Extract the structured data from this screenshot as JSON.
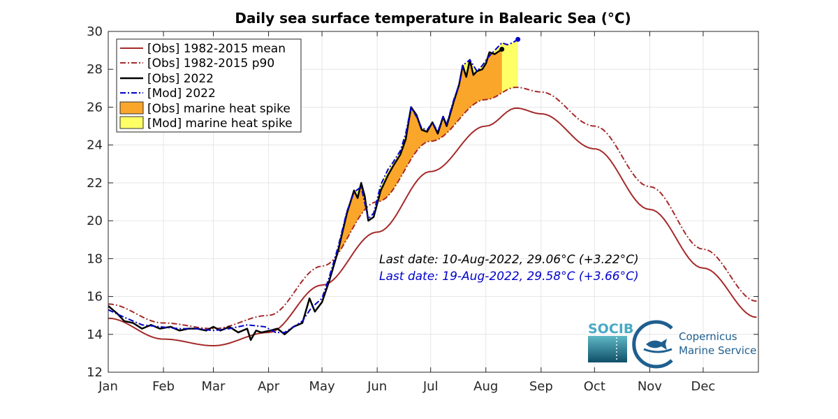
{
  "chart_data": {
    "type": "line",
    "title": "Daily sea surface temperature in Balearic Sea (°C)",
    "xlabel": "",
    "ylabel": "",
    "xlim": [
      "2022-01-01",
      "2022-12-31"
    ],
    "ylim": [
      12,
      30
    ],
    "grid": true,
    "legend_position": "top-left",
    "x_tick_labels": [
      "Jan",
      "Feb",
      "Mar",
      "Apr",
      "May",
      "Jun",
      "Jul",
      "Aug",
      "Sep",
      "Oct",
      "Nov",
      "Dec"
    ],
    "y_ticks": [
      12,
      14,
      16,
      18,
      20,
      22,
      24,
      26,
      28,
      30
    ],
    "series": [
      {
        "name": "[Obs] 1982-2015 mean",
        "color": "#a52a2a",
        "style": "solid",
        "x": [
          "2022-01-01",
          "2022-02-01",
          "2022-03-01",
          "2022-04-01",
          "2022-05-01",
          "2022-06-01",
          "2022-07-01",
          "2022-08-01",
          "2022-08-18",
          "2022-09-01",
          "2022-10-01",
          "2022-11-01",
          "2022-12-01",
          "2022-12-31"
        ],
        "y": [
          14.85,
          13.75,
          13.4,
          14.1,
          16.6,
          19.4,
          22.6,
          25.0,
          25.95,
          25.65,
          23.8,
          20.6,
          17.5,
          14.9
        ]
      },
      {
        "name": "[Obs] 1982-2015 p90",
        "color": "#a52a2a",
        "style": "dashdot",
        "x": [
          "2022-01-01",
          "2022-02-01",
          "2022-03-01",
          "2022-04-01",
          "2022-05-01",
          "2022-06-01",
          "2022-07-01",
          "2022-08-01",
          "2022-08-18",
          "2022-09-01",
          "2022-10-01",
          "2022-11-01",
          "2022-12-01",
          "2022-12-31"
        ],
        "y": [
          15.6,
          14.6,
          14.3,
          15.0,
          17.6,
          21.0,
          24.2,
          26.4,
          27.05,
          26.8,
          25.0,
          21.8,
          18.5,
          15.75
        ]
      },
      {
        "name": "[Obs] 2022",
        "color": "#000000",
        "style": "solid",
        "x": [
          "2022-01-01",
          "2022-01-06",
          "2022-01-10",
          "2022-01-15",
          "2022-01-20",
          "2022-01-25",
          "2022-01-30",
          "2022-02-05",
          "2022-02-10",
          "2022-02-15",
          "2022-02-20",
          "2022-02-25",
          "2022-03-01",
          "2022-03-05",
          "2022-03-10",
          "2022-03-15",
          "2022-03-20",
          "2022-03-22",
          "2022-03-25",
          "2022-03-28",
          "2022-04-02",
          "2022-04-06",
          "2022-04-10",
          "2022-04-15",
          "2022-04-20",
          "2022-04-24",
          "2022-04-27",
          "2022-05-01",
          "2022-05-05",
          "2022-05-10",
          "2022-05-15",
          "2022-05-19",
          "2022-05-21",
          "2022-05-23",
          "2022-05-25",
          "2022-05-27",
          "2022-05-30",
          "2022-06-03",
          "2022-06-07",
          "2022-06-10",
          "2022-06-14",
          "2022-06-17",
          "2022-06-20",
          "2022-06-23",
          "2022-06-26",
          "2022-06-29",
          "2022-07-02",
          "2022-07-05",
          "2022-07-08",
          "2022-07-10",
          "2022-07-14",
          "2022-07-17",
          "2022-07-19",
          "2022-07-21",
          "2022-07-23",
          "2022-07-25",
          "2022-07-27",
          "2022-07-30",
          "2022-08-01",
          "2022-08-03",
          "2022-08-06",
          "2022-08-10"
        ],
        "y": [
          15.5,
          15.1,
          14.7,
          14.6,
          14.3,
          14.5,
          14.3,
          14.4,
          14.2,
          14.3,
          14.3,
          14.2,
          14.4,
          14.2,
          14.4,
          14.1,
          14.3,
          13.7,
          14.2,
          14.1,
          14.2,
          14.3,
          14.0,
          14.4,
          14.6,
          15.9,
          15.2,
          15.7,
          16.8,
          18.4,
          20.4,
          21.6,
          21.2,
          22.0,
          21.3,
          20.0,
          20.2,
          21.6,
          22.4,
          22.9,
          23.5,
          24.3,
          26.0,
          25.6,
          24.8,
          24.7,
          25.2,
          24.6,
          25.5,
          25.0,
          26.3,
          27.2,
          28.2,
          27.6,
          28.5,
          27.7,
          27.9,
          28.0,
          28.3,
          28.9,
          28.8,
          29.06
        ]
      },
      {
        "name": "[Mod] 2022",
        "color": "#0000cc",
        "style": "dashdot",
        "x": [
          "2022-01-01",
          "2022-01-10",
          "2022-01-20",
          "2022-01-30",
          "2022-02-10",
          "2022-02-20",
          "2022-03-01",
          "2022-03-10",
          "2022-03-20",
          "2022-03-30",
          "2022-04-05",
          "2022-04-10",
          "2022-04-15",
          "2022-04-20",
          "2022-04-25",
          "2022-05-01",
          "2022-05-05",
          "2022-05-10",
          "2022-05-15",
          "2022-05-19",
          "2022-05-23",
          "2022-05-27",
          "2022-05-30",
          "2022-06-03",
          "2022-06-07",
          "2022-06-10",
          "2022-06-14",
          "2022-06-17",
          "2022-06-20",
          "2022-06-23",
          "2022-06-26",
          "2022-06-29",
          "2022-07-02",
          "2022-07-05",
          "2022-07-08",
          "2022-07-10",
          "2022-07-14",
          "2022-07-17",
          "2022-07-19",
          "2022-07-23",
          "2022-07-27",
          "2022-07-30",
          "2022-08-02",
          "2022-08-06",
          "2022-08-10",
          "2022-08-13",
          "2022-08-16",
          "2022-08-19"
        ],
        "y": [
          15.3,
          14.9,
          14.5,
          14.4,
          14.3,
          14.3,
          14.2,
          14.3,
          14.5,
          14.4,
          14.1,
          14.1,
          14.4,
          14.7,
          15.4,
          15.9,
          17.0,
          18.6,
          20.5,
          21.5,
          21.8,
          20.1,
          20.4,
          21.9,
          22.7,
          23.1,
          23.7,
          24.6,
          26.0,
          25.5,
          24.9,
          24.8,
          25.2,
          24.7,
          25.5,
          25.1,
          26.4,
          27.2,
          28.2,
          28.5,
          27.9,
          28.2,
          28.6,
          29.0,
          29.4,
          29.3,
          29.4,
          29.58
        ]
      }
    ],
    "fills": [
      {
        "name": "[Obs] marine heat spike",
        "color": "#f9a62b"
      },
      {
        "name": "[Mod] marine heat spike",
        "color": "#ffff66"
      }
    ],
    "annotations": [
      {
        "text": "Last date: 10-Aug-2022, 29.06°C (+3.22°C)",
        "color": "#000000"
      },
      {
        "text": "Last date: 19-Aug-2022, 29.58°C (+3.66°C)",
        "color": "#0000cc"
      }
    ]
  },
  "logos": {
    "socib": "SOCIB",
    "copernicus_line1": "Copernicus",
    "copernicus_line2": "Marine Service"
  }
}
